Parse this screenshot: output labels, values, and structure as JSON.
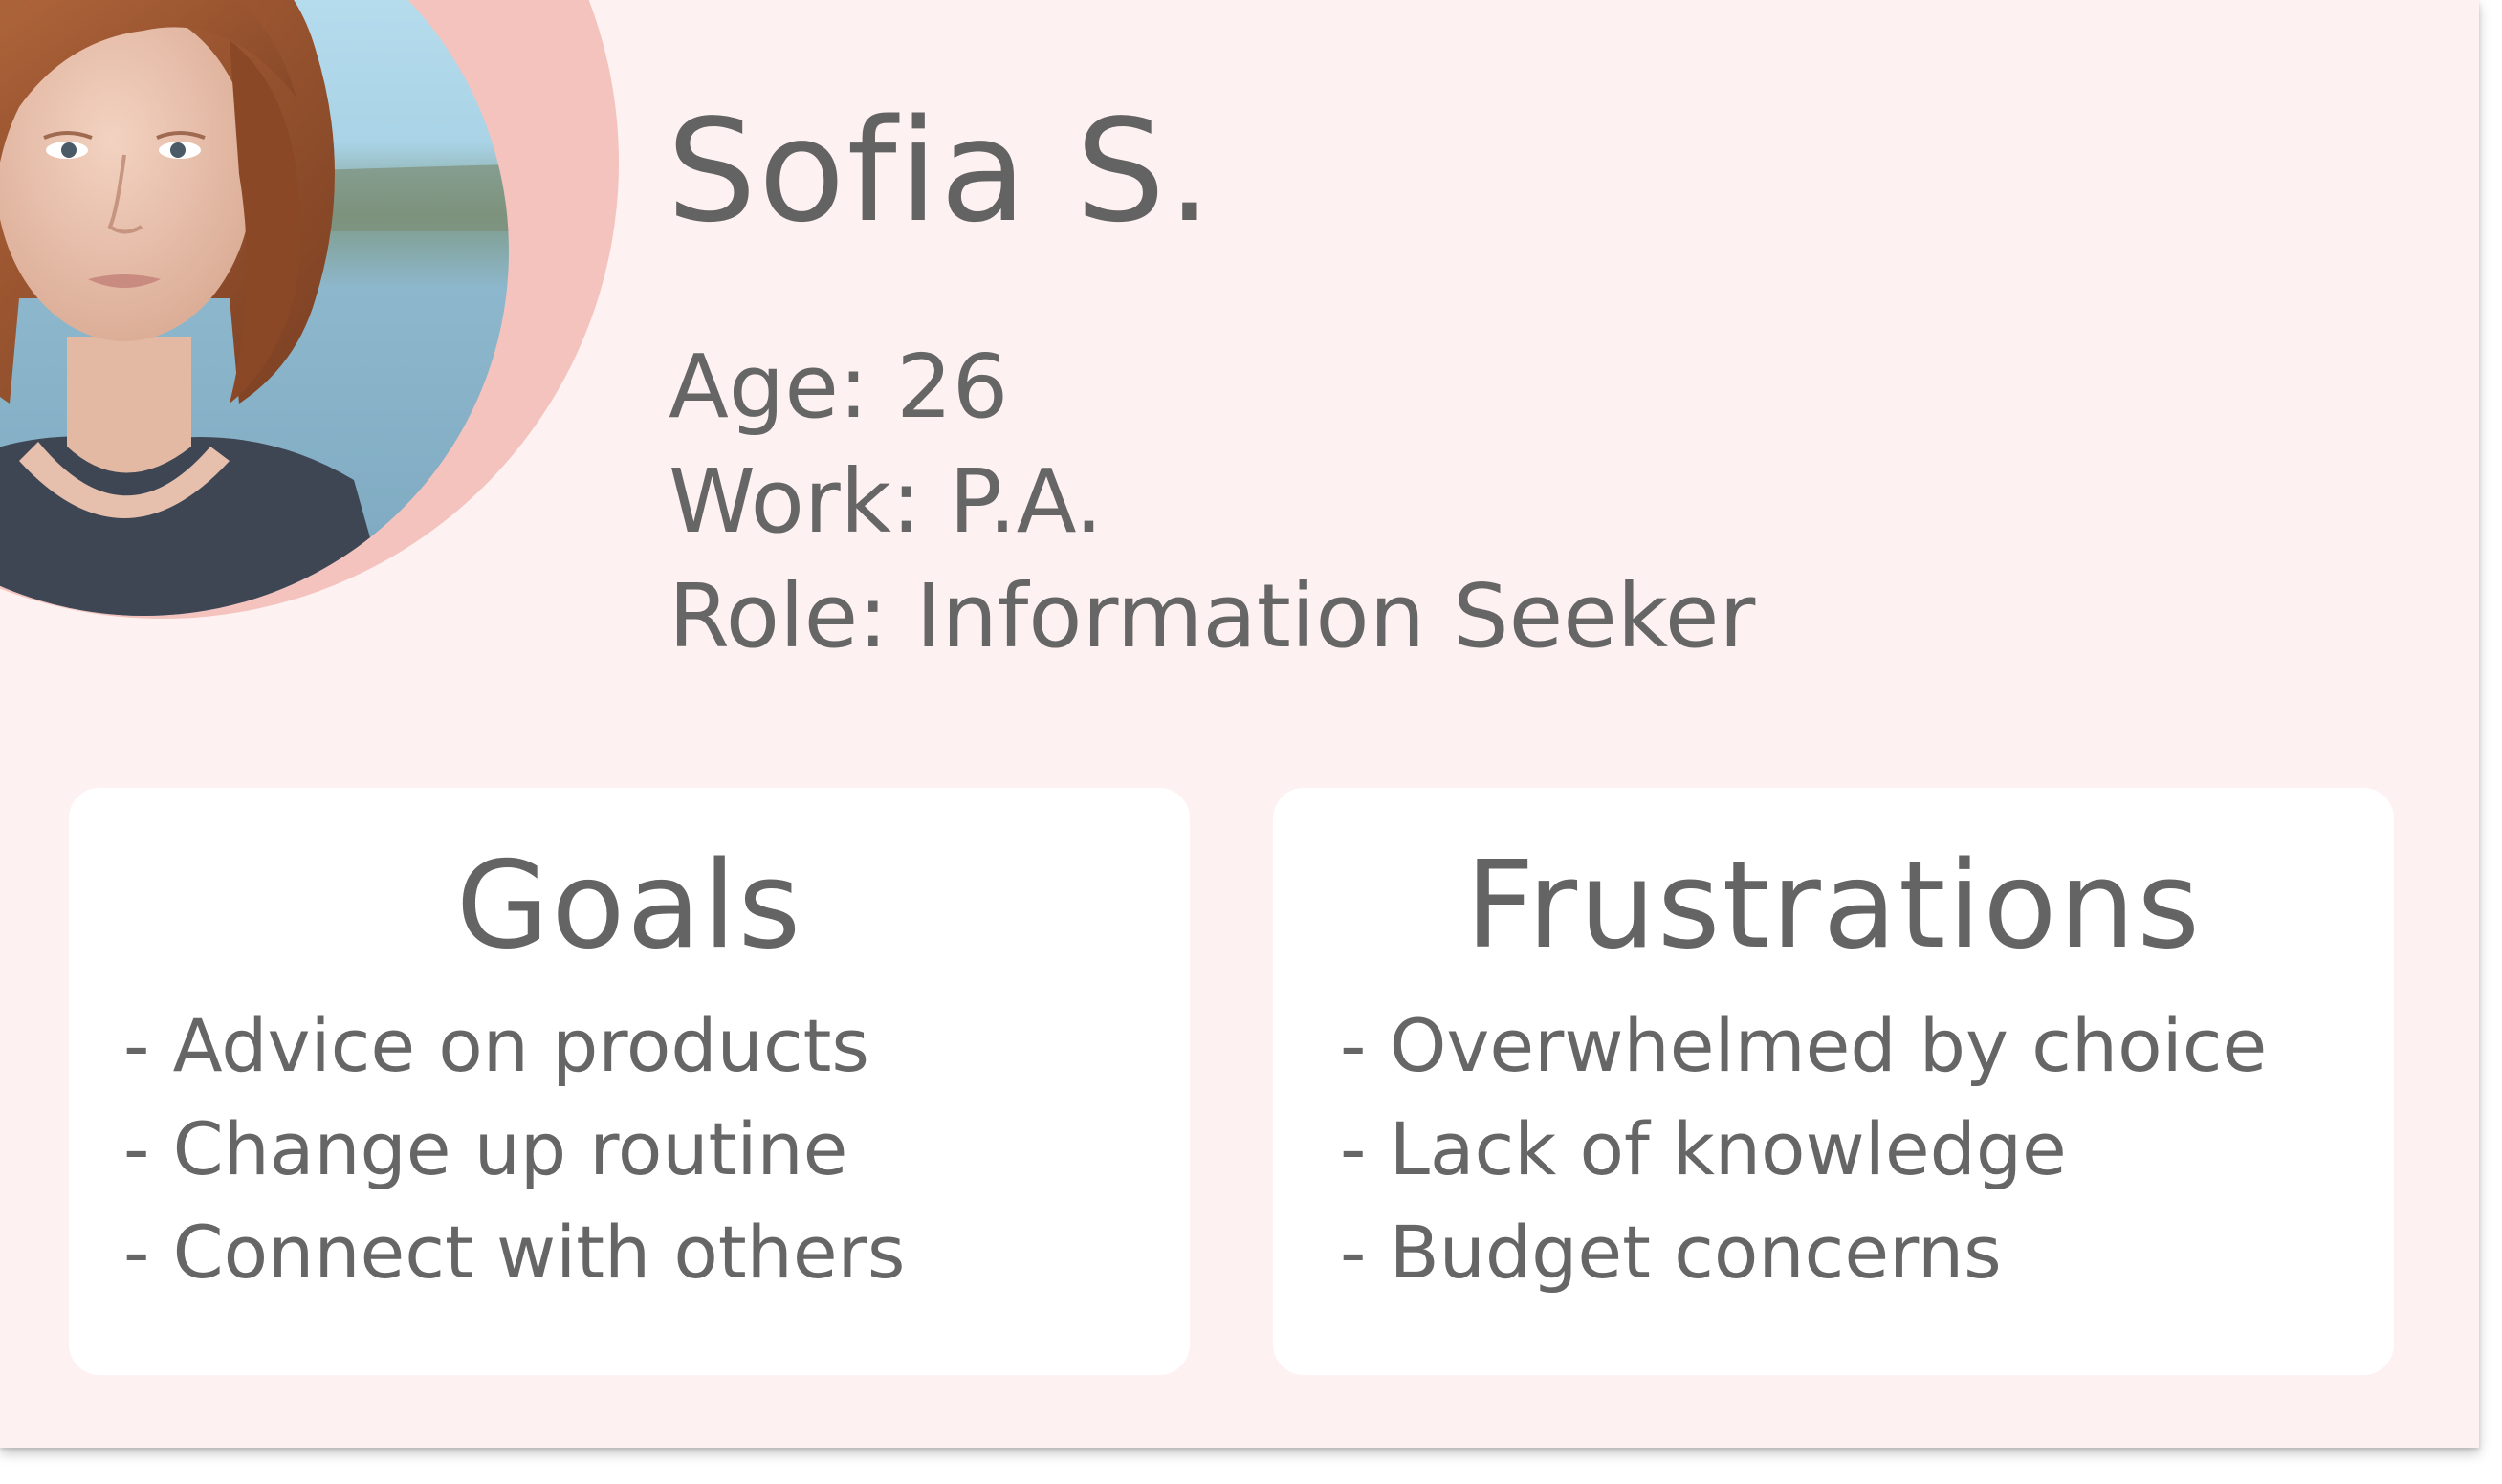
{
  "persona": {
    "name": "Sofia S.",
    "details": [
      "Age: 26",
      "Work: P.A.",
      "Role: Information Seeker"
    ],
    "colors": {
      "background": "#fdf1f1",
      "ring": "#f4c3be",
      "text": "#666666",
      "panel": "#ffffff"
    }
  },
  "goals": {
    "title": "Goals",
    "items": [
      "- Advice on products",
      "- Change up routine",
      "- Connect with others"
    ]
  },
  "frustrations": {
    "title": "Frustrations",
    "items": [
      "- Overwhelmed by choice",
      "- Lack of knowledge",
      "- Budget concerns"
    ]
  }
}
